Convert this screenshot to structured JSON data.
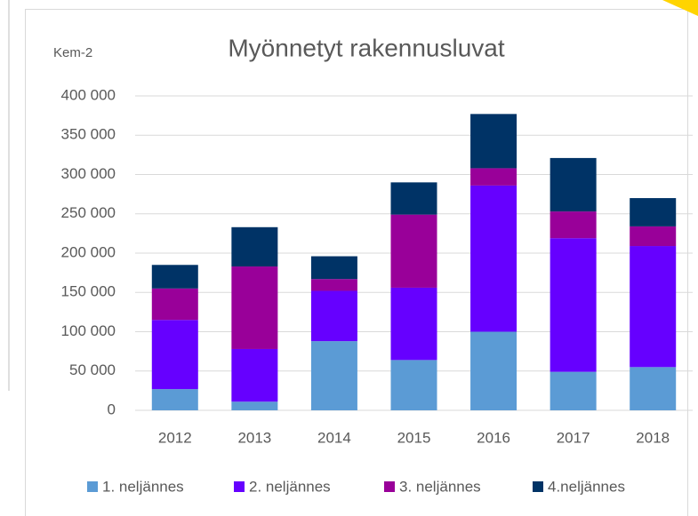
{
  "chart_data": {
    "type": "stacked_bar",
    "title": "Myönnetyt rakennusluvat",
    "annotation": "Kem-2",
    "categories": [
      "2012",
      "2013",
      "2014",
      "2015",
      "2016",
      "2017",
      "2018"
    ],
    "series": [
      {
        "name": "1. neljännes",
        "color": "#5b9bd5",
        "values": [
          27000,
          11000,
          88000,
          64000,
          100000,
          49000,
          55000
        ]
      },
      {
        "name": "2. neljännes",
        "color": "#6600ff",
        "values": [
          88000,
          67000,
          64000,
          92000,
          186000,
          170000,
          154000
        ]
      },
      {
        "name": "3. neljännes",
        "color": "#990099",
        "values": [
          40000,
          105000,
          15000,
          93000,
          22000,
          34000,
          25000
        ]
      },
      {
        "name": "4.neljännes",
        "color": "#003366",
        "values": [
          30000,
          50000,
          29000,
          41000,
          69000,
          68000,
          36000
        ]
      }
    ],
    "ylim": [
      0,
      400000
    ],
    "yticks": [
      0,
      {
        "value": 50000,
        "label": "50 000"
      },
      {
        "value": 100000,
        "label": "100 000"
      },
      {
        "value": 150000,
        "label": "150 000"
      },
      {
        "value": 200000,
        "label": "200 000"
      },
      {
        "value": 250000,
        "label": "250 000"
      },
      {
        "value": 300000,
        "label": "300 000"
      },
      {
        "value": 350000,
        "label": "350 000"
      },
      {
        "value": 400000,
        "label": "400 000"
      }
    ],
    "grid": true
  }
}
